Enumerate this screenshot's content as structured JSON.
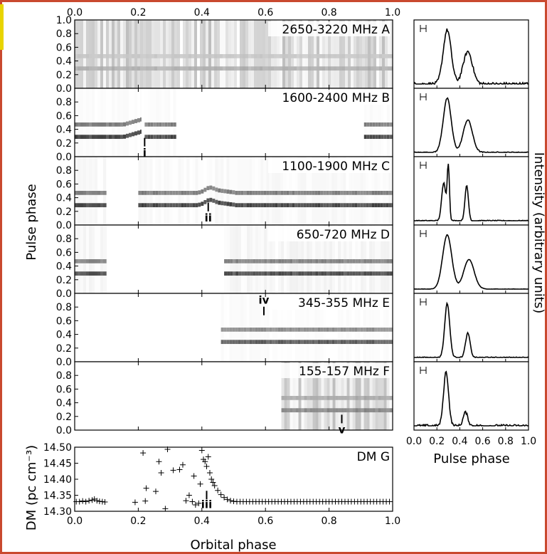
{
  "chart_data": {
    "type": "figure",
    "left_panels": {
      "xlabel": "Orbital phase",
      "x_range": [
        0.0,
        1.0
      ],
      "x_ticks": [
        "0.0",
        "0.2",
        "0.4",
        "0.6",
        "0.8",
        "1.0"
      ],
      "ylabel": "Pulse phase",
      "y_ticks_top": [
        "0.0",
        "0.2",
        "0.4",
        "0.6",
        "0.8",
        "1.0"
      ],
      "y_ticks_other": [
        "0.0",
        "0.2",
        "0.4",
        "0.6",
        "0.8"
      ],
      "panels": [
        {
          "id": "A",
          "label": "2650-3220 MHz A",
          "coverage": [
            [
              0.0,
              1.0
            ]
          ],
          "noise": 0.55,
          "pulse_strength": 0.35
        },
        {
          "id": "B",
          "label": "1600-2400 MHz B",
          "coverage": [
            [
              0.0,
              0.21
            ],
            [
              0.22,
              0.32
            ],
            [
              0.91,
              1.0
            ]
          ],
          "noise": 0.05,
          "pulse_strength": 0.9
        },
        {
          "id": "C",
          "label": "1100-1900 MHz C",
          "coverage": [
            [
              0.0,
              0.1
            ],
            [
              0.2,
              1.0
            ]
          ],
          "noise": 0.08,
          "pulse_strength": 0.9
        },
        {
          "id": "D",
          "label": "650-720 MHz D",
          "coverage": [
            [
              0.0,
              0.1
            ],
            [
              0.47,
              1.0
            ]
          ],
          "noise": 0.12,
          "pulse_strength": 0.85
        },
        {
          "id": "E",
          "label": "345-355 MHz E",
          "coverage": [
            [
              0.46,
              1.0
            ]
          ],
          "noise": 0.05,
          "pulse_strength": 0.8
        },
        {
          "id": "F",
          "label": "155-157 MHz F",
          "coverage": [
            [
              0.65,
              1.0
            ]
          ],
          "noise": 0.55,
          "pulse_strength": 0.55
        }
      ],
      "markers": [
        {
          "label": "i",
          "panel": "B",
          "x": 0.22,
          "y": 0.15
        },
        {
          "label": "ii",
          "panel": "C",
          "x": 0.42,
          "y": 0.2
        },
        {
          "label": "iv",
          "panel": "E",
          "x": 0.595,
          "y": 0.68
        },
        {
          "label": "v",
          "panel": "F",
          "x": 0.84,
          "y": 0.1
        }
      ]
    },
    "dm_panel": {
      "label": "DM G",
      "ylabel": "DM (pc cm⁻³)",
      "y_range": [
        14.3,
        14.5
      ],
      "y_ticks": [
        "14.30",
        "14.35",
        "14.40",
        "14.45",
        "14.50"
      ],
      "marker": {
        "label": "iii",
        "x": 0.415,
        "y": 14.315
      },
      "points": [
        [
          0.005,
          14.33
        ],
        [
          0.015,
          14.33
        ],
        [
          0.025,
          14.332
        ],
        [
          0.035,
          14.33
        ],
        [
          0.045,
          14.333
        ],
        [
          0.055,
          14.335
        ],
        [
          0.062,
          14.338
        ],
        [
          0.07,
          14.333
        ],
        [
          0.078,
          14.331
        ],
        [
          0.087,
          14.33
        ],
        [
          0.095,
          14.329
        ],
        [
          0.19,
          14.328
        ],
        [
          0.215,
          14.482
        ],
        [
          0.225,
          14.372
        ],
        [
          0.222,
          14.332
        ],
        [
          0.255,
          14.362
        ],
        [
          0.265,
          14.455
        ],
        [
          0.272,
          14.42
        ],
        [
          0.285,
          14.308
        ],
        [
          0.292,
          14.497
        ],
        [
          0.31,
          14.428
        ],
        [
          0.33,
          14.43
        ],
        [
          0.34,
          14.445
        ],
        [
          0.35,
          14.333
        ],
        [
          0.36,
          14.35
        ],
        [
          0.37,
          14.33
        ],
        [
          0.375,
          14.41
        ],
        [
          0.38,
          14.32
        ],
        [
          0.39,
          14.325
        ],
        [
          0.395,
          14.385
        ],
        [
          0.4,
          14.49
        ],
        [
          0.405,
          14.462
        ],
        [
          0.41,
          14.455
        ],
        [
          0.415,
          14.44
        ],
        [
          0.42,
          14.47
        ],
        [
          0.425,
          14.42
        ],
        [
          0.43,
          14.4
        ],
        [
          0.435,
          14.39
        ],
        [
          0.44,
          14.38
        ],
        [
          0.45,
          14.365
        ],
        [
          0.46,
          14.352
        ],
        [
          0.47,
          14.343
        ],
        [
          0.48,
          14.337
        ],
        [
          0.49,
          14.333
        ],
        [
          0.5,
          14.331
        ],
        [
          0.51,
          14.33
        ],
        [
          0.52,
          14.33
        ],
        [
          0.53,
          14.33
        ],
        [
          0.54,
          14.33
        ],
        [
          0.55,
          14.33
        ],
        [
          0.56,
          14.33
        ],
        [
          0.57,
          14.33
        ],
        [
          0.58,
          14.33
        ],
        [
          0.59,
          14.33
        ],
        [
          0.6,
          14.33
        ],
        [
          0.61,
          14.33
        ],
        [
          0.62,
          14.33
        ],
        [
          0.63,
          14.33
        ],
        [
          0.64,
          14.33
        ],
        [
          0.65,
          14.33
        ],
        [
          0.66,
          14.33
        ],
        [
          0.67,
          14.33
        ],
        [
          0.68,
          14.33
        ],
        [
          0.69,
          14.33
        ],
        [
          0.7,
          14.33
        ],
        [
          0.71,
          14.33
        ],
        [
          0.72,
          14.33
        ],
        [
          0.73,
          14.33
        ],
        [
          0.74,
          14.33
        ],
        [
          0.75,
          14.33
        ],
        [
          0.76,
          14.33
        ],
        [
          0.77,
          14.33
        ],
        [
          0.78,
          14.33
        ],
        [
          0.79,
          14.33
        ],
        [
          0.8,
          14.33
        ],
        [
          0.81,
          14.33
        ],
        [
          0.82,
          14.33
        ],
        [
          0.83,
          14.33
        ],
        [
          0.84,
          14.33
        ],
        [
          0.85,
          14.33
        ],
        [
          0.86,
          14.33
        ],
        [
          0.87,
          14.33
        ],
        [
          0.88,
          14.33
        ],
        [
          0.89,
          14.33
        ],
        [
          0.9,
          14.33
        ],
        [
          0.91,
          14.33
        ],
        [
          0.92,
          14.33
        ],
        [
          0.93,
          14.33
        ],
        [
          0.94,
          14.33
        ],
        [
          0.95,
          14.33
        ],
        [
          0.96,
          14.33
        ],
        [
          0.97,
          14.33
        ],
        [
          0.98,
          14.33
        ],
        [
          0.99,
          14.33
        ]
      ]
    },
    "profile_panels": {
      "xlabel": "Pulse phase",
      "ylabel": "Intensity (arbitrary units)",
      "x_range": [
        0.0,
        1.0
      ],
      "x_ticks": [
        "0.0",
        "0.2",
        "0.4",
        "0.6",
        "0.8",
        "1.0"
      ],
      "profiles": [
        {
          "panel": "A",
          "components": [
            [
              0.29,
              0.035,
              1.0
            ],
            [
              0.47,
              0.04,
              0.6
            ]
          ],
          "noise": 0.06
        },
        {
          "panel": "B",
          "components": [
            [
              0.29,
              0.035,
              1.0
            ],
            [
              0.47,
              0.04,
              0.6
            ]
          ],
          "noise": 0.02
        },
        {
          "panel": "C",
          "components": [
            [
              0.26,
              0.018,
              0.7
            ],
            [
              0.3,
              0.01,
              1.0
            ],
            [
              0.46,
              0.015,
              0.65
            ]
          ],
          "noise": 0.02
        },
        {
          "panel": "D",
          "components": [
            [
              0.29,
              0.04,
              1.0
            ],
            [
              0.48,
              0.045,
              0.55
            ]
          ],
          "noise": 0.01
        },
        {
          "panel": "E",
          "components": [
            [
              0.29,
              0.022,
              1.0
            ],
            [
              0.47,
              0.02,
              0.45
            ]
          ],
          "noise": 0.02
        },
        {
          "panel": "F",
          "components": [
            [
              0.28,
              0.022,
              1.0
            ],
            [
              0.45,
              0.02,
              0.25
            ]
          ],
          "noise": 0.05
        }
      ]
    }
  }
}
